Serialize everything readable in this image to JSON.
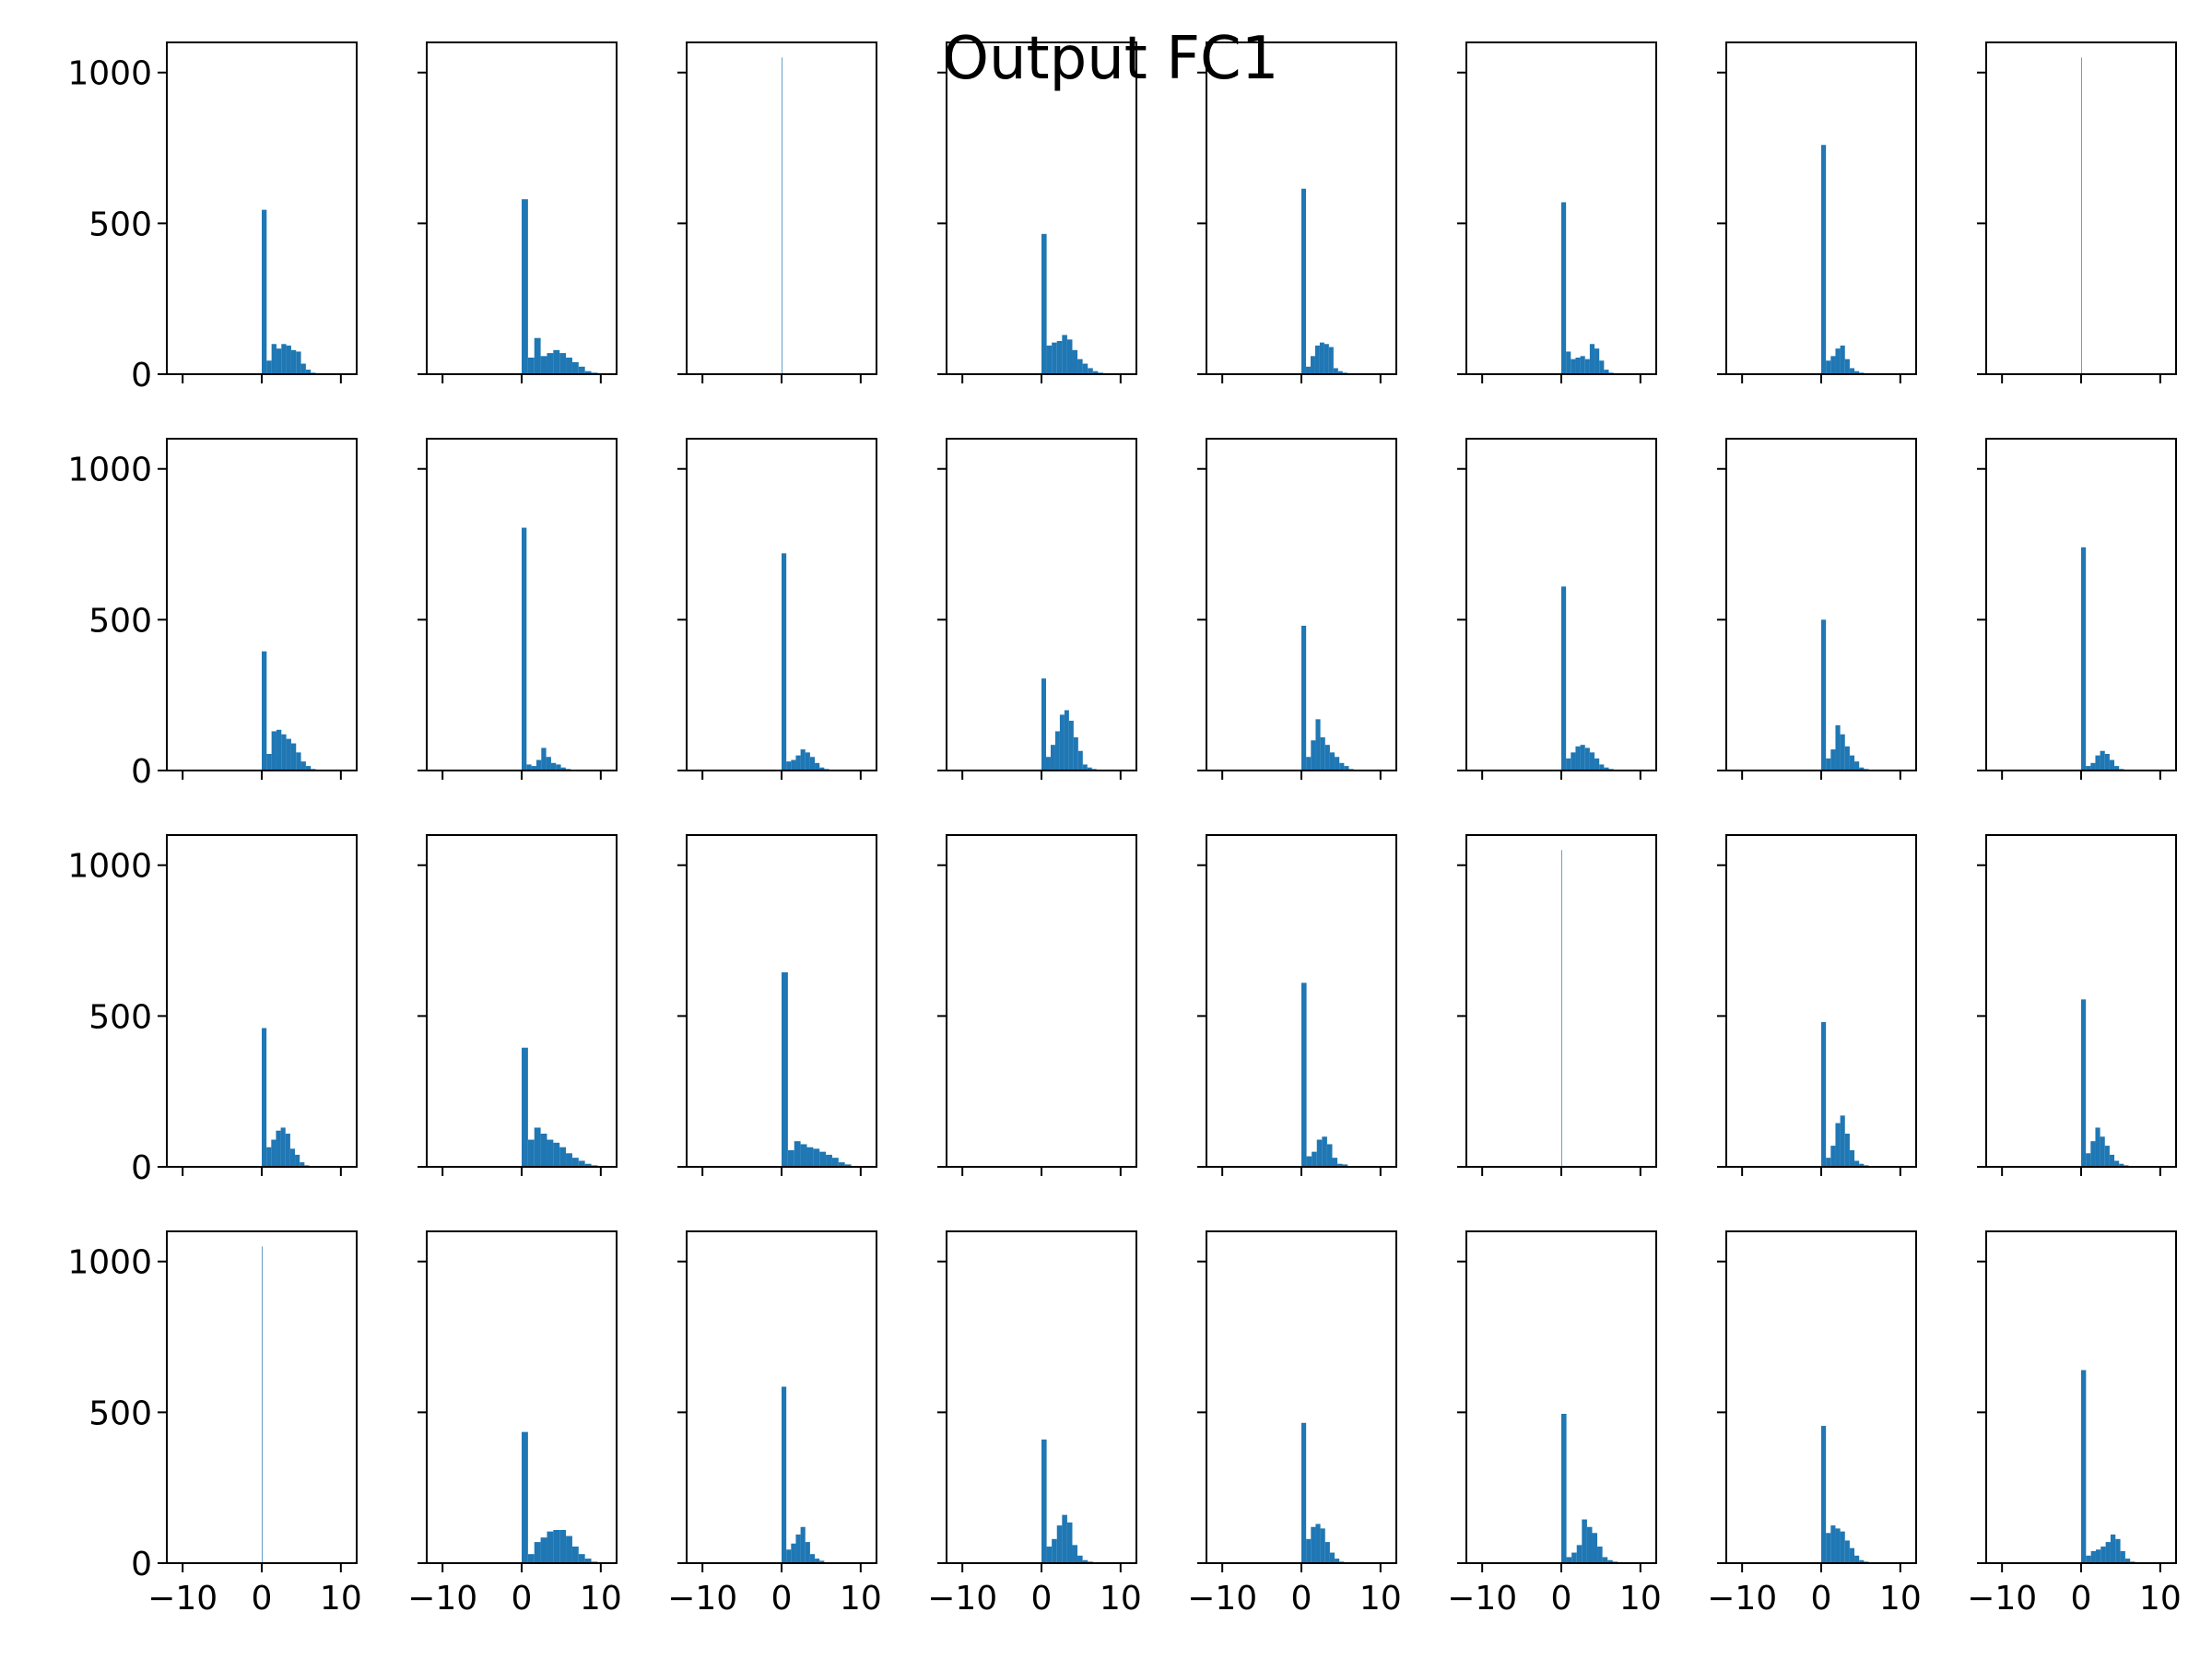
{
  "chart_data": {
    "type": "bar",
    "title": "Output FC1",
    "layout": {
      "rows": 4,
      "cols": 8,
      "sharex": true,
      "sharey": true
    },
    "xlim": [
      -12,
      12
    ],
    "ylim": [
      0,
      1100
    ],
    "xticks": [
      -10,
      0,
      10
    ],
    "xtick_labels": [
      "−10",
      "0",
      "10"
    ],
    "yticks": [
      0,
      500,
      1000
    ],
    "ytick_labels": [
      "0",
      "500",
      "1000"
    ],
    "grid": false,
    "legend": "none",
    "bar_color": "#1f77b4",
    "panels": [
      {
        "bins": [
          0,
          0.62,
          1.24,
          1.86,
          2.48,
          3.1,
          3.72,
          4.34,
          4.96,
          5.58,
          6.2,
          6.82,
          7.44
        ],
        "counts": [
          545,
          45,
          100,
          85,
          100,
          95,
          80,
          75,
          35,
          15,
          5,
          2
        ]
      },
      {
        "bins": [
          0,
          0.8,
          1.6,
          2.4,
          3.2,
          4.0,
          4.8,
          5.6,
          6.4,
          7.2,
          8.0,
          8.8,
          9.6
        ],
        "counts": [
          580,
          55,
          120,
          60,
          70,
          80,
          70,
          55,
          40,
          25,
          10,
          5
        ]
      },
      {
        "bins": [
          0,
          0.08
        ],
        "counts": [
          1050
        ]
      },
      {
        "bins": [
          0,
          0.65,
          1.3,
          1.95,
          2.6,
          3.25,
          3.9,
          4.55,
          5.2,
          5.85,
          6.5,
          7.15,
          7.8
        ],
        "counts": [
          465,
          95,
          105,
          110,
          130,
          115,
          80,
          50,
          35,
          20,
          10,
          5
        ]
      },
      {
        "bins": [
          0,
          0.58,
          1.16,
          1.74,
          2.32,
          2.9,
          3.48,
          4.06,
          4.64,
          5.22,
          5.8,
          6.38,
          6.96
        ],
        "counts": [
          615,
          25,
          60,
          95,
          105,
          100,
          90,
          20,
          10,
          5,
          2,
          1
        ]
      },
      {
        "bins": [
          0,
          0.6,
          1.2,
          1.8,
          2.4,
          3.0,
          3.6,
          4.2,
          4.8,
          5.4,
          6.0,
          6.6,
          7.2
        ],
        "counts": [
          570,
          75,
          50,
          55,
          60,
          50,
          100,
          85,
          45,
          15,
          5,
          2
        ]
      },
      {
        "bins": [
          0,
          0.6,
          1.2,
          1.8,
          2.4,
          3.0,
          3.6,
          4.2,
          4.8,
          5.4,
          6.0,
          6.6,
          7.2
        ],
        "counts": [
          760,
          45,
          60,
          85,
          95,
          50,
          20,
          10,
          5,
          2,
          1,
          1
        ]
      },
      {
        "bins": [
          0,
          0.08
        ],
        "counts": [
          1050
        ]
      },
      {
        "bins": [
          0,
          0.62,
          1.24,
          1.86,
          2.48,
          3.1,
          3.72,
          4.34,
          4.96,
          5.58,
          6.2,
          6.82,
          7.44
        ],
        "counts": [
          395,
          55,
          130,
          135,
          120,
          105,
          90,
          60,
          30,
          15,
          5,
          2
        ]
      },
      {
        "bins": [
          0,
          0.62,
          1.24,
          1.86,
          2.48,
          3.1,
          3.72,
          4.34,
          4.96,
          5.58,
          6.2,
          6.82,
          7.44
        ],
        "counts": [
          805,
          20,
          15,
          35,
          75,
          45,
          25,
          20,
          10,
          5,
          2,
          1
        ]
      },
      {
        "bins": [
          0,
          0.6,
          1.2,
          1.8,
          2.4,
          3.0,
          3.6,
          4.2,
          4.8,
          5.4,
          6.0,
          6.6,
          7.2
        ],
        "counts": [
          720,
          30,
          35,
          50,
          70,
          60,
          45,
          25,
          10,
          5,
          2,
          1
        ]
      },
      {
        "bins": [
          0,
          0.58,
          1.16,
          1.74,
          2.32,
          2.9,
          3.48,
          4.06,
          4.64,
          5.22,
          5.8,
          6.38,
          6.96
        ],
        "counts": [
          305,
          45,
          85,
          130,
          185,
          200,
          165,
          110,
          65,
          20,
          10,
          5
        ]
      },
      {
        "bins": [
          0,
          0.6,
          1.2,
          1.8,
          2.4,
          3.0,
          3.6,
          4.2,
          4.8,
          5.4,
          6.0,
          6.6,
          7.2
        ],
        "counts": [
          480,
          45,
          100,
          170,
          110,
          85,
          60,
          45,
          25,
          15,
          5,
          2
        ]
      },
      {
        "bins": [
          0,
          0.6,
          1.2,
          1.8,
          2.4,
          3.0,
          3.6,
          4.2,
          4.8,
          5.4,
          6.0,
          6.6,
          7.2
        ],
        "counts": [
          610,
          40,
          60,
          80,
          85,
          75,
          60,
          40,
          20,
          10,
          5,
          2
        ]
      },
      {
        "bins": [
          0,
          0.6,
          1.2,
          1.8,
          2.4,
          3.0,
          3.6,
          4.2,
          4.8,
          5.4,
          6.0,
          6.6,
          7.2
        ],
        "counts": [
          500,
          40,
          70,
          150,
          120,
          80,
          50,
          30,
          10,
          5,
          2,
          1
        ]
      },
      {
        "bins": [
          0,
          0.6,
          1.2,
          1.8,
          2.4,
          3.0,
          3.6,
          4.2,
          4.8,
          5.4,
          6.0,
          6.6,
          7.2
        ],
        "counts": [
          740,
          15,
          25,
          50,
          65,
          55,
          35,
          15,
          5,
          2,
          1,
          1
        ]
      },
      {
        "bins": [
          0,
          0.6,
          1.2,
          1.8,
          2.4,
          3.0,
          3.6,
          4.2,
          4.8,
          5.4,
          6.0,
          6.6,
          7.2
        ],
        "counts": [
          460,
          65,
          90,
          120,
          130,
          110,
          60,
          40,
          15,
          5,
          2,
          1
        ]
      },
      {
        "bins": [
          0,
          0.8,
          1.6,
          2.4,
          3.2,
          4.0,
          4.8,
          5.6,
          6.4,
          7.2,
          8.0,
          8.8,
          9.6
        ],
        "counts": [
          395,
          90,
          130,
          110,
          90,
          80,
          65,
          45,
          30,
          20,
          10,
          5
        ]
      },
      {
        "bins": [
          0,
          0.8,
          1.6,
          2.4,
          3.2,
          4.0,
          4.8,
          5.6,
          6.4,
          7.2,
          8.0,
          8.8,
          9.6
        ],
        "counts": [
          645,
          55,
          85,
          75,
          65,
          60,
          50,
          40,
          30,
          15,
          8,
          3
        ]
      },
      {
        "bins": [],
        "counts": []
      },
      {
        "bins": [
          0,
          0.65,
          1.3,
          1.95,
          2.6,
          3.25,
          3.9,
          4.55,
          5.2,
          5.85,
          6.5,
          7.15,
          7.8
        ],
        "counts": [
          610,
          35,
          50,
          90,
          100,
          75,
          30,
          10,
          8,
          3,
          2,
          1
        ]
      },
      {
        "bins": [
          0,
          0.08
        ],
        "counts": [
          1050
        ]
      },
      {
        "bins": [
          0,
          0.6,
          1.2,
          1.8,
          2.4,
          3.0,
          3.6,
          4.2,
          4.8,
          5.4,
          6.0,
          6.6,
          7.2
        ],
        "counts": [
          480,
          30,
          70,
          145,
          170,
          110,
          55,
          20,
          10,
          5,
          2,
          1
        ]
      },
      {
        "bins": [
          0,
          0.6,
          1.2,
          1.8,
          2.4,
          3.0,
          3.6,
          4.2,
          4.8,
          5.4,
          6.0,
          6.6,
          7.2
        ],
        "counts": [
          555,
          45,
          85,
          130,
          100,
          70,
          40,
          20,
          10,
          5,
          2,
          1
        ]
      },
      {
        "bins": [
          0,
          0.08
        ],
        "counts": [
          1050
        ]
      },
      {
        "bins": [
          0,
          0.8,
          1.6,
          2.4,
          3.2,
          4.0,
          4.8,
          5.6,
          6.4,
          7.2,
          8.0,
          8.8,
          9.6
        ],
        "counts": [
          435,
          30,
          70,
          85,
          105,
          110,
          110,
          90,
          55,
          30,
          15,
          5
        ]
      },
      {
        "bins": [
          0,
          0.6,
          1.2,
          1.8,
          2.4,
          3.0,
          3.6,
          4.2,
          4.8,
          5.4,
          6.0,
          6.6,
          7.2
        ],
        "counts": [
          585,
          45,
          65,
          95,
          120,
          70,
          30,
          15,
          8,
          3,
          2,
          1
        ]
      },
      {
        "bins": [
          0,
          0.65,
          1.3,
          1.95,
          2.6,
          3.25,
          3.9,
          4.55,
          5.2,
          5.85,
          6.5,
          7.15,
          7.8
        ],
        "counts": [
          410,
          55,
          80,
          125,
          160,
          135,
          60,
          25,
          10,
          5,
          2,
          1
        ]
      },
      {
        "bins": [
          0,
          0.6,
          1.2,
          1.8,
          2.4,
          3.0,
          3.6,
          4.2,
          4.8,
          5.4,
          6.0,
          6.6,
          7.2
        ],
        "counts": [
          465,
          80,
          120,
          130,
          115,
          70,
          35,
          15,
          5,
          2,
          1,
          1
        ]
      },
      {
        "bins": [
          0,
          0.65,
          1.3,
          1.95,
          2.6,
          3.25,
          3.9,
          4.55,
          5.2,
          5.85,
          6.5,
          7.15,
          7.8
        ],
        "counts": [
          495,
          20,
          35,
          60,
          145,
          120,
          100,
          55,
          20,
          10,
          5,
          2
        ]
      },
      {
        "bins": [
          0,
          0.6,
          1.2,
          1.8,
          2.4,
          3.0,
          3.6,
          4.2,
          4.8,
          5.4,
          6.0,
          6.6,
          7.2
        ],
        "counts": [
          455,
          100,
          125,
          115,
          105,
          75,
          50,
          25,
          10,
          5,
          2,
          1
        ]
      },
      {
        "bins": [
          0,
          0.62,
          1.24,
          1.86,
          2.48,
          3.1,
          3.72,
          4.34,
          4.96,
          5.58,
          6.2,
          6.82,
          7.44
        ],
        "counts": [
          640,
          25,
          40,
          45,
          55,
          70,
          95,
          80,
          40,
          15,
          5,
          2
        ]
      }
    ]
  }
}
